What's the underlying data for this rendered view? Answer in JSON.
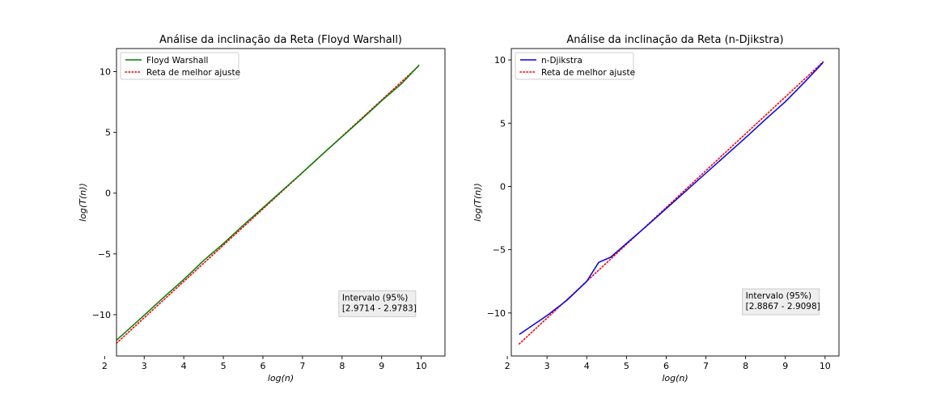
{
  "chart_data": [
    {
      "type": "line",
      "title": "Análise da inclinação da Reta (Floyd Warshall)",
      "xlabel": "log(n)",
      "ylabel": "log(T(n))",
      "xlim": [
        2.3,
        10.6
      ],
      "ylim": [
        -13.4,
        11.9
      ],
      "xticks": [
        2,
        3,
        4,
        5,
        6,
        7,
        8,
        9,
        10
      ],
      "xtick_labels": [
        "2",
        "3",
        "4",
        "5",
        "6",
        "7",
        "8",
        "9",
        "10"
      ],
      "yticks": [
        -10,
        -5,
        0,
        5,
        10
      ],
      "ytick_labels": [
        "−10",
        "−5",
        "0",
        "5",
        "10"
      ],
      "grid": false,
      "legend_position": "top-left",
      "series": [
        {
          "name": "Floyd Warshall",
          "style": "solid",
          "color": "#008000",
          "x": [
            2.3,
            3.0,
            3.5,
            4.0,
            4.5,
            5.0,
            5.5,
            6.0,
            6.5,
            7.0,
            7.5,
            8.0,
            8.5,
            9.0,
            9.5,
            9.95
          ],
          "y": [
            -12.1,
            -10.05,
            -8.55,
            -7.1,
            -5.55,
            -4.15,
            -2.65,
            -1.2,
            0.25,
            1.7,
            3.2,
            4.65,
            6.1,
            7.6,
            9.0,
            10.55
          ]
        },
        {
          "name": "Reta de melhor ajuste",
          "style": "dotted",
          "color": "#ff0000",
          "x": [
            2.3,
            9.95
          ],
          "y": [
            -12.35,
            10.5
          ]
        }
      ],
      "annotation": {
        "line1": "Intervalo (95%)",
        "line2": "[2.9714 - 2.9783]",
        "x": 8.0,
        "y": -9.5
      }
    },
    {
      "type": "line",
      "title": "Análise da inclinação da Reta (n-Djikstra)",
      "xlabel": "log(n)",
      "ylabel": "log(T(n))",
      "xlim": [
        2.1,
        10.35
      ],
      "ylim": [
        -13.4,
        10.9
      ],
      "xticks": [
        2,
        3,
        4,
        5,
        6,
        7,
        8,
        9,
        10
      ],
      "xtick_labels": [
        "2",
        "3",
        "4",
        "5",
        "6",
        "7",
        "8",
        "9",
        "10"
      ],
      "yticks": [
        -10,
        -5,
        0,
        5,
        10
      ],
      "ytick_labels": [
        "−10",
        "−5",
        "0",
        "5",
        "10"
      ],
      "grid": false,
      "legend_position": "top-left",
      "series": [
        {
          "name": "n-Djikstra",
          "style": "solid",
          "color": "#0000ff",
          "x": [
            2.3,
            3.0,
            3.5,
            4.0,
            4.3,
            4.6,
            5.0,
            5.5,
            6.0,
            6.5,
            7.0,
            7.5,
            8.0,
            8.5,
            9.0,
            9.5,
            9.95
          ],
          "y": [
            -11.7,
            -10.2,
            -9.0,
            -7.5,
            -6.0,
            -5.6,
            -4.5,
            -3.15,
            -1.75,
            -0.35,
            1.05,
            2.45,
            3.85,
            5.3,
            6.7,
            8.3,
            9.8
          ]
        },
        {
          "name": "Reta de melhor ajuste",
          "style": "dotted",
          "color": "#ff0000",
          "x": [
            2.3,
            9.95
          ],
          "y": [
            -12.45,
            9.85
          ]
        }
      ],
      "annotation": {
        "line1": "Intervalo (95%)",
        "line2": "[2.8867 - 2.9098]",
        "x": 8.0,
        "y": -9.5
      }
    }
  ]
}
